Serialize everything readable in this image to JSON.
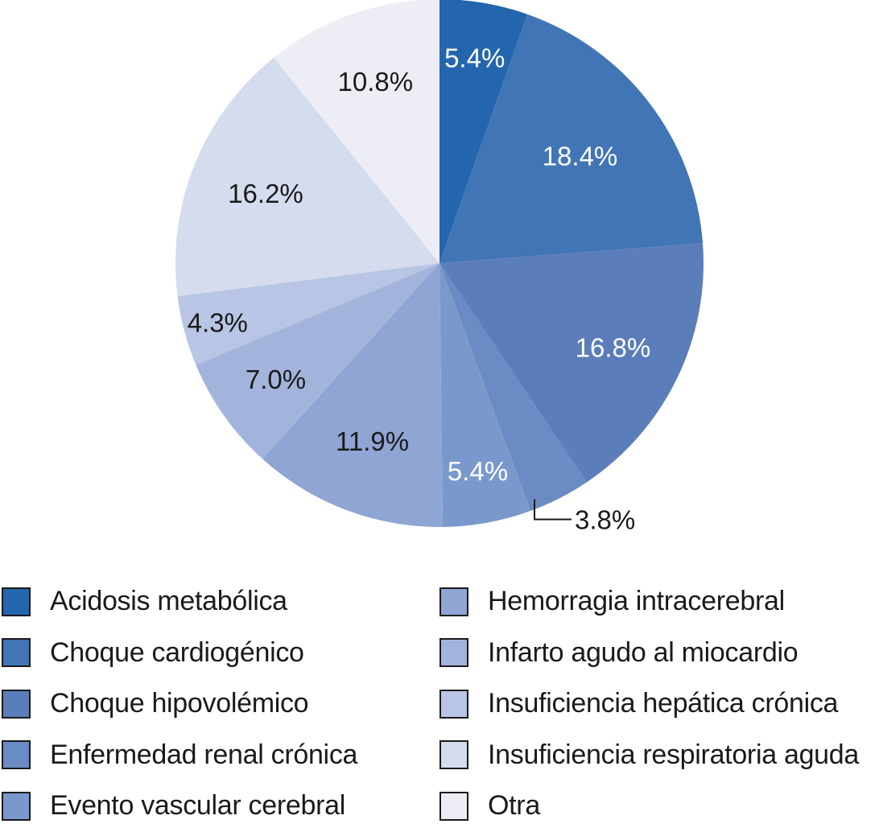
{
  "chart_data": {
    "type": "pie",
    "title": "",
    "start_angle_deg": 0,
    "direction": "clockwise",
    "slices": [
      {
        "label": "Acidosis metabólica",
        "value": 5.4,
        "text": "5.4%",
        "color": "#2466ae",
        "text_color": "#ffffff"
      },
      {
        "label": "Choque cardiogénico",
        "value": 18.4,
        "text": "18.4%",
        "color": "#4275b6",
        "text_color": "#ffffff"
      },
      {
        "label": "Choque hipovolémico",
        "value": 16.8,
        "text": "16.8%",
        "color": "#5b7dba",
        "text_color": "#ffffff"
      },
      {
        "label": "Enfermedad renal crónica",
        "value": 3.8,
        "text": "3.8%",
        "color": "#6a8bc4",
        "text_color": "#1a1a1a",
        "callout": true
      },
      {
        "label": "Evento vascular cerebral",
        "value": 5.4,
        "text": "5.4%",
        "color": "#7b98cc",
        "text_color": "#ffffff"
      },
      {
        "label": "Hemorragia intracerebral",
        "value": 11.9,
        "text": "11.9%",
        "color": "#8fa5d3",
        "text_color": "#1a1a1a"
      },
      {
        "label": "Infarto agudo al miocardio",
        "value": 7.0,
        "text": "7.0%",
        "color": "#a3b4dc",
        "text_color": "#1a1a1a"
      },
      {
        "label": "Insuficiencia hepática crónica",
        "value": 4.3,
        "text": "4.3%",
        "color": "#b8c5e4",
        "text_color": "#1a1a1a"
      },
      {
        "label": "Insuficiencia respiratoria aguda",
        "value": 16.2,
        "text": "16.2%",
        "color": "#d4dcee",
        "text_color": "#1a1a1a"
      },
      {
        "label": "Otra",
        "value": 10.8,
        "text": "10.8%",
        "color": "#ededf6",
        "text_color": "#1a1a1a"
      }
    ],
    "legend_placement": "bottom"
  }
}
